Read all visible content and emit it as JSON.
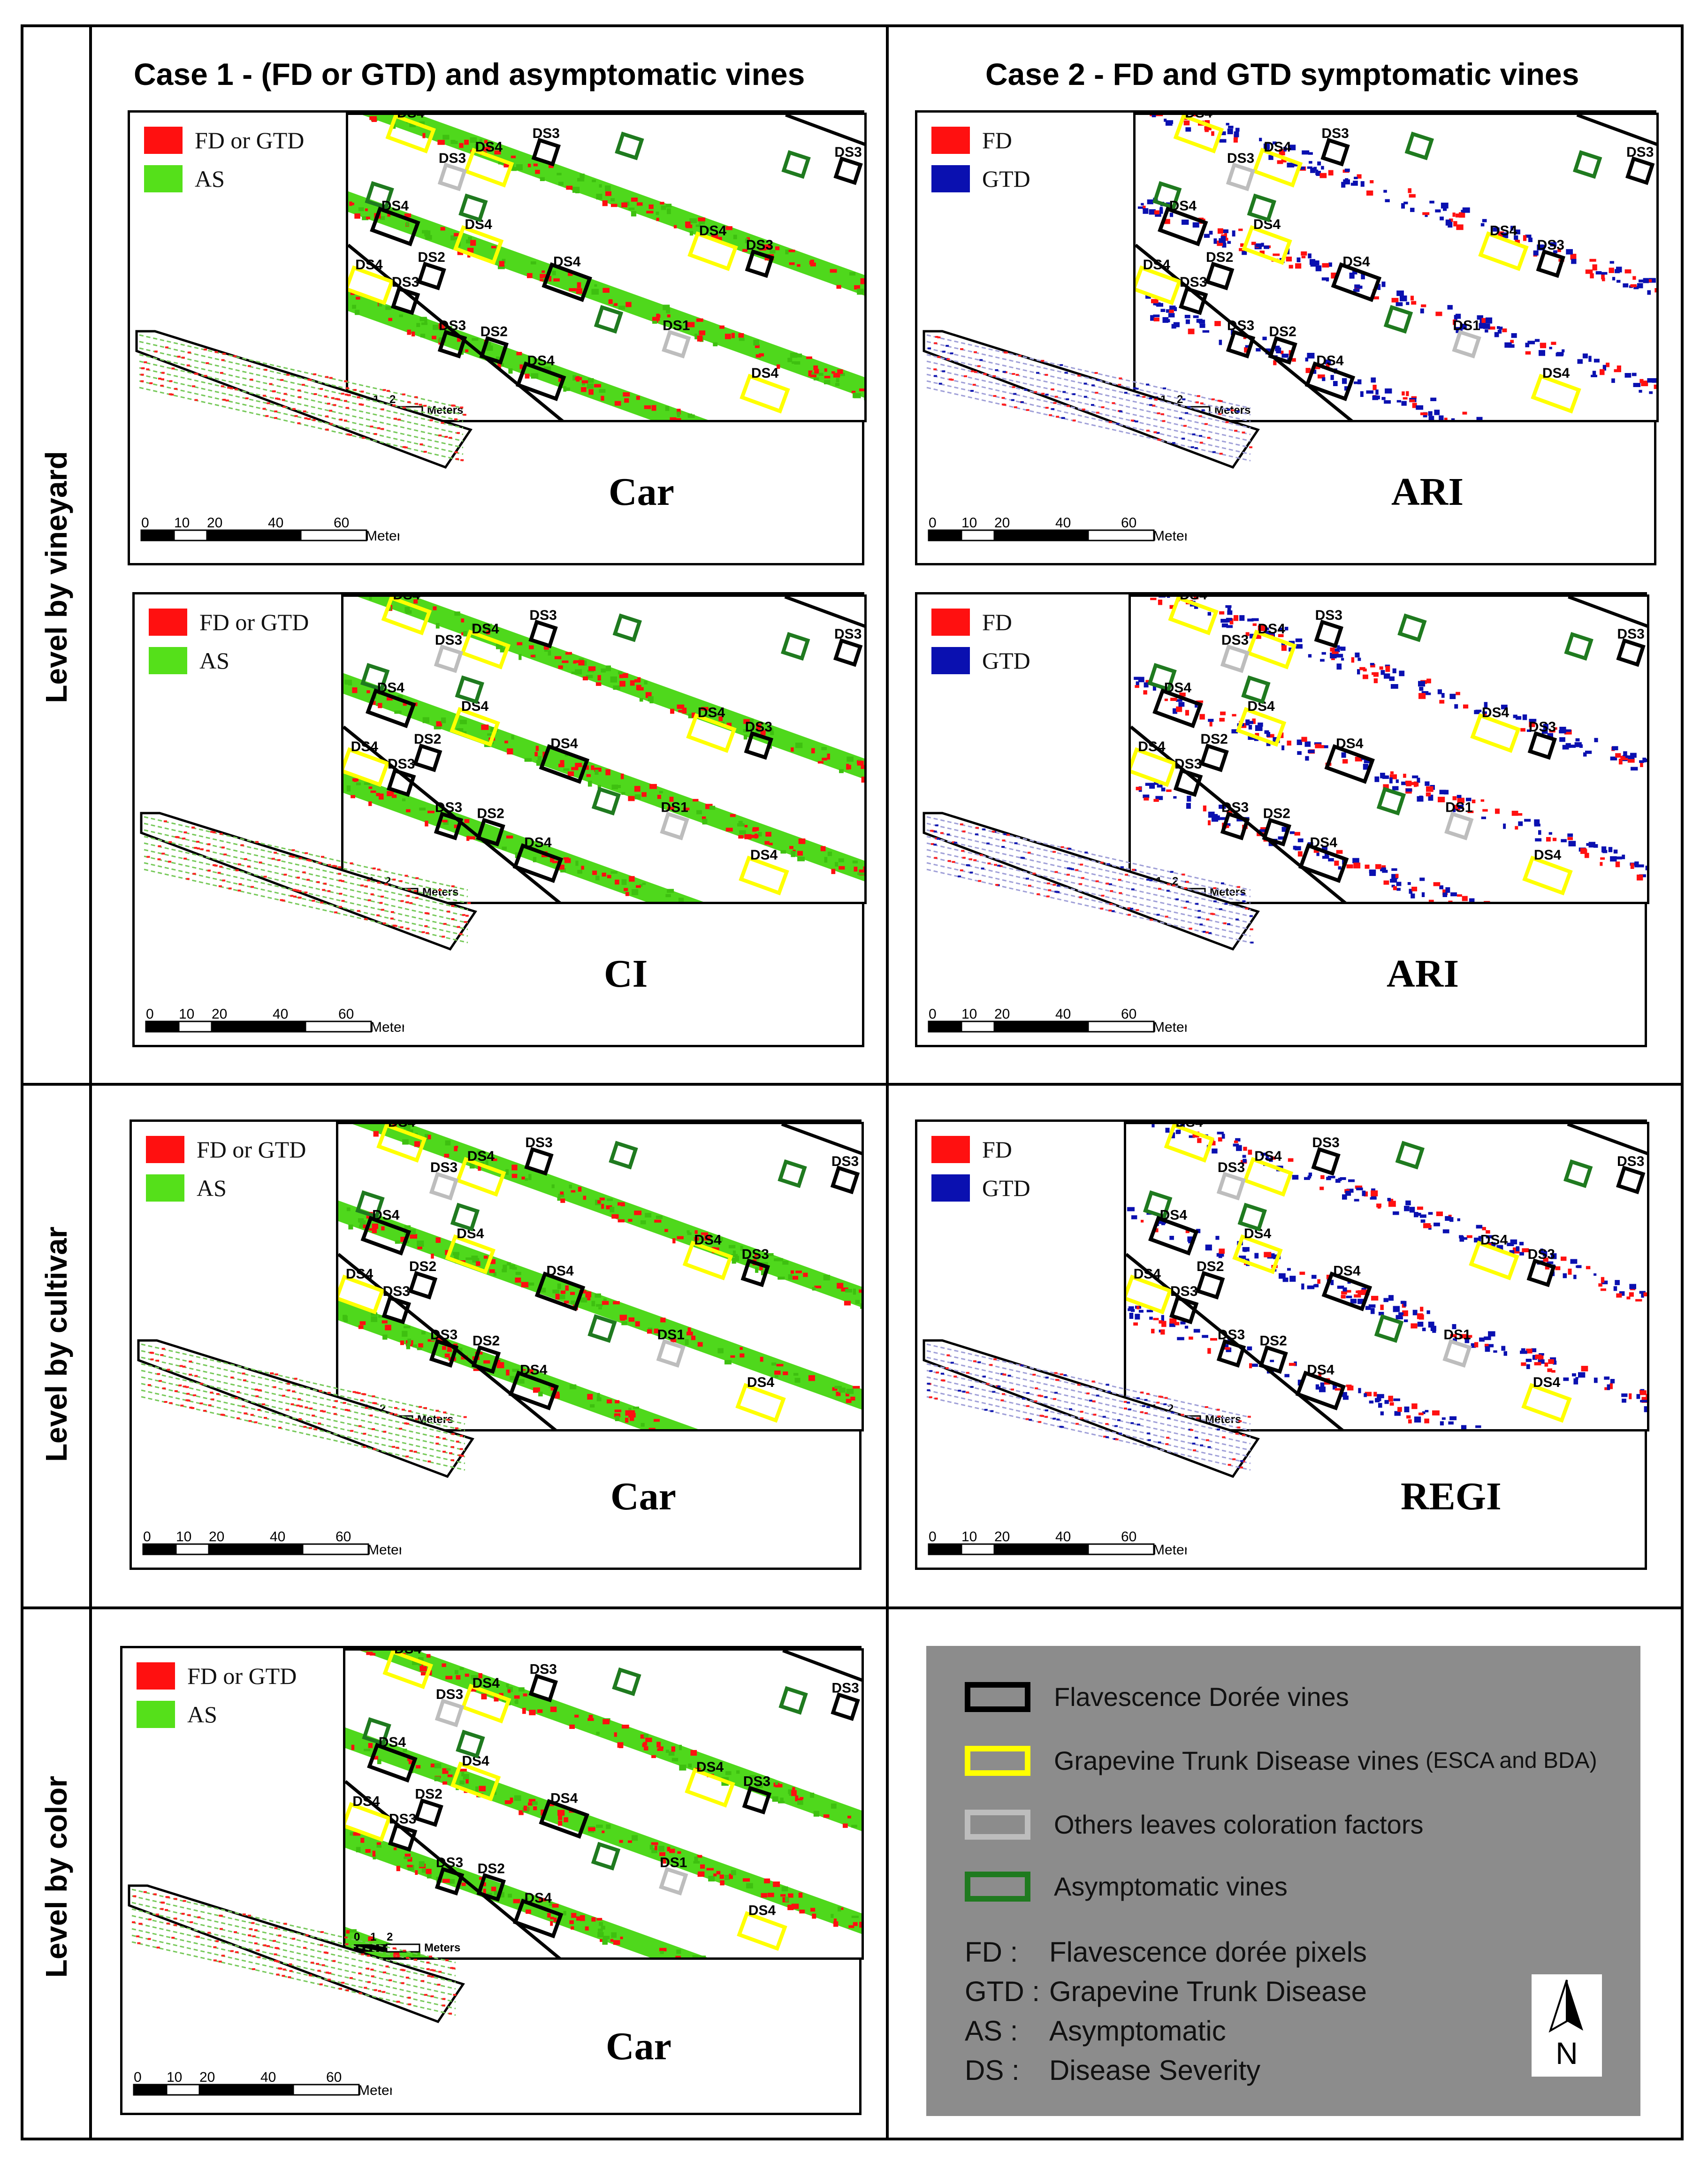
{
  "row_labels": [
    "Level by vineyard",
    "Level by cultivar",
    "Level by color"
  ],
  "case_headers": [
    "Case 1 -  (FD or GTD) and  asymptomatic vines",
    "Case 2 -  FD and GTD symptomatic vines"
  ],
  "legend_case1": {
    "item1": "FD or GTD",
    "item2": "AS",
    "color1": "#ff1010",
    "color2": "#55e01a"
  },
  "legend_case2": {
    "item1": "FD",
    "item2": "GTD",
    "color1": "#ff1010",
    "color2": "#0a10b0"
  },
  "panels": [
    {
      "index": "Car"
    },
    {
      "index": "ARI"
    },
    {
      "index": "CI"
    },
    {
      "index": "ARI"
    },
    {
      "index": "Car"
    },
    {
      "index": "REGI"
    },
    {
      "index": "Car"
    }
  ],
  "overview_scale": {
    "ticks": [
      "0",
      "10",
      "20",
      "40",
      "60"
    ],
    "unit": "Meters"
  },
  "inset_scale": {
    "ticks": [
      "0",
      "1",
      "2"
    ],
    "unit": "Meters"
  },
  "vine_labels": {
    "ds1": "DS1",
    "ds2": "DS2",
    "ds3": "DS3",
    "ds4": "DS4"
  },
  "main_legend": {
    "items": [
      {
        "label": "Flavescence Dorée vines",
        "color": "#000000"
      },
      {
        "label": "Grapevine Trunk Disease vines",
        "suffix": "(ESCA and BDA)",
        "color": "#ffff00"
      },
      {
        "label": "Others leaves coloration factors",
        "color": "#bdbdbd"
      },
      {
        "label": "Asymptomatic vines",
        "color": "#1f7a1f"
      }
    ],
    "abbreviations": [
      {
        "abbr": "FD :",
        "text": "Flavescence dorée pixels"
      },
      {
        "abbr": "GTD :",
        "text": "Grapevine Trunk Disease"
      },
      {
        "abbr": "AS :",
        "text": "Asymptomatic"
      },
      {
        "abbr": "DS :",
        "text": "Disease Severity"
      }
    ],
    "north_label": "N"
  }
}
